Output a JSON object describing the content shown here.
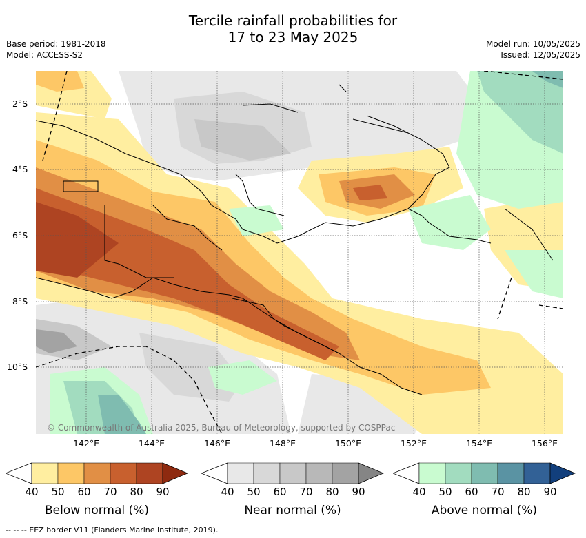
{
  "title_line1": "Tercile rainfall probabilities for",
  "title_line2": "17 to 23 May 2025",
  "base_period": "Base period: 1981-2018",
  "model": "Model: ACCESS-S2",
  "model_run": "Model run: 10/05/2025",
  "issued": "Issued: 12/05/2025",
  "lat_labels": [
    "2°S",
    "4°S",
    "6°S",
    "8°S",
    "10°S"
  ],
  "lon_labels": [
    "142°E",
    "144°E",
    "146°E",
    "148°E",
    "150°E",
    "152°E",
    "154°E",
    "156°E"
  ],
  "copyright": "© Commonwealth of Australia 2025, Bureau of Meteorology, supported by COSPPac",
  "colorbars": [
    {
      "title": "Below normal (%)",
      "ticks": [
        "40",
        "50",
        "60",
        "70",
        "80",
        "90"
      ],
      "colors": [
        "#ffeea0",
        "#fdc766",
        "#e18f45",
        "#c8602e",
        "#ae4422",
        "#8e2a10"
      ]
    },
    {
      "title": "Near normal (%)",
      "ticks": [
        "40",
        "50",
        "60",
        "70",
        "80",
        "90"
      ],
      "colors": [
        "#e8e8e8",
        "#d8d8d8",
        "#c8c8c8",
        "#b8b8b8",
        "#a3a3a3",
        "#858585"
      ]
    },
    {
      "title": "Above normal (%)",
      "ticks": [
        "40",
        "50",
        "60",
        "70",
        "80",
        "90"
      ],
      "colors": [
        "#c9fbd0",
        "#a2dcbf",
        "#7fbcb0",
        "#5a93a3",
        "#326196",
        "#123f7c"
      ]
    }
  ],
  "footnote": "--  --  -- EEZ border V11 (Flanders Marine Institute, 2019)."
}
